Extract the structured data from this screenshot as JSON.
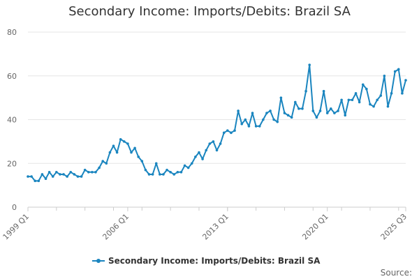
{
  "chart_data": {
    "type": "line",
    "title": "Secondary Income: Imports/Debits: Brazil SA",
    "xlabel": "",
    "ylabel": "",
    "x_tick_labels": [
      "1999 Q1",
      "2006 Q1",
      "2013 Q1",
      "2020 Q1",
      "2025 Q3"
    ],
    "y_ticks": [
      0,
      20,
      40,
      60,
      80
    ],
    "ylim": [
      0,
      80
    ],
    "x_start": "1999 Q1",
    "x_end": "2025 Q3",
    "grid": "horizontal",
    "legend_position": "bottom-center",
    "series": [
      {
        "name": "Secondary Income: Imports/Debits: Brazil SA",
        "color": "#1a85bf",
        "values": [
          14,
          14,
          12,
          12,
          15,
          13,
          16,
          14,
          16,
          15,
          15,
          14,
          16,
          15,
          14,
          14,
          17,
          16,
          16,
          16,
          18,
          21,
          20,
          25,
          28,
          25,
          31,
          30,
          29,
          25,
          27,
          23,
          21,
          17,
          15,
          15,
          20,
          15,
          15,
          17,
          16,
          15,
          16,
          16,
          19,
          18,
          20,
          23,
          25,
          22,
          26,
          29,
          30,
          26,
          29,
          34,
          35,
          34,
          35,
          44,
          38,
          40,
          37,
          43,
          37,
          37,
          40,
          43,
          44,
          40,
          39,
          50,
          43,
          42,
          41,
          48,
          45,
          45,
          53,
          65,
          44,
          41,
          44,
          53,
          43,
          45,
          43,
          44,
          49,
          42,
          49,
          49,
          52,
          48,
          56,
          54,
          47,
          46,
          49,
          51,
          60,
          46,
          52,
          62,
          63,
          52,
          58
        ]
      }
    ]
  },
  "legend": {
    "label": "Secondary Income: Imports/Debits: Brazil SA"
  },
  "source": {
    "label": "Source:"
  }
}
